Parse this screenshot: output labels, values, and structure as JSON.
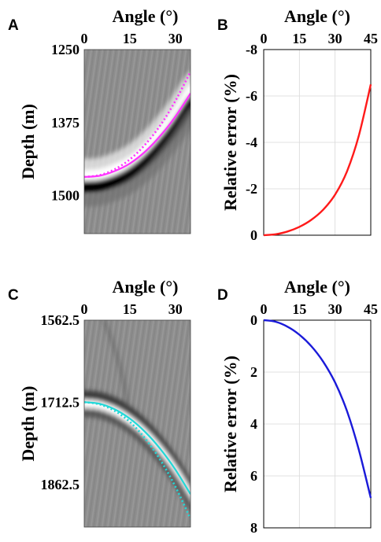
{
  "panels": {
    "A": {
      "letter": "A"
    },
    "B": {
      "letter": "B"
    },
    "C": {
      "letter": "C"
    },
    "D": {
      "letter": "D"
    }
  },
  "colors": {
    "magenta": "#ff33ff",
    "red": "#ff1a1a",
    "cyan": "#22d8d8",
    "blue": "#1a1ad9",
    "grid": "#d9d9d9"
  },
  "chart_data": [
    {
      "id": "A",
      "type": "heatmap",
      "title": "",
      "xlabel": "Angle (°)",
      "ylabel": "Depth (m)",
      "xlim": [
        0,
        35
      ],
      "ylim": [
        1250,
        1565
      ],
      "xticks": [
        "0",
        "15",
        "30"
      ],
      "xtick_values": [
        0,
        15,
        30
      ],
      "yticks": [
        "1250",
        "1375",
        "1500"
      ],
      "ytick_values": [
        1250,
        1375,
        1500
      ],
      "series": [
        {
          "style": "solid",
          "color": "magenta",
          "x": [
            0,
            5,
            10,
            15,
            20,
            25,
            30,
            35
          ],
          "y": [
            1468,
            1466,
            1458,
            1445,
            1425,
            1398,
            1365,
            1325
          ]
        },
        {
          "style": "dotted",
          "color": "magenta",
          "x": [
            0,
            5,
            10,
            15,
            20,
            25,
            30,
            35
          ],
          "y": [
            1468,
            1465,
            1455,
            1438,
            1413,
            1380,
            1338,
            1288
          ]
        }
      ]
    },
    {
      "id": "B",
      "type": "line",
      "title": "",
      "xlabel": "Angle (°)",
      "ylabel": "Relative error (%)",
      "xlim": [
        0,
        45
      ],
      "ylim": [
        0,
        -8
      ],
      "y_inverted": true,
      "grid": true,
      "xticks": [
        "0",
        "15",
        "30",
        "45"
      ],
      "xtick_values": [
        0,
        15,
        30,
        45
      ],
      "yticks": [
        "0",
        "-2",
        "-4",
        "-6",
        "-8"
      ],
      "ytick_values": [
        0,
        -2,
        -4,
        -6,
        -8
      ],
      "series": [
        {
          "color": "red",
          "x": [
            0,
            5,
            10,
            15,
            20,
            25,
            30,
            35,
            40,
            45
          ],
          "y": [
            0,
            -0.04,
            -0.16,
            -0.36,
            -0.66,
            -1.1,
            -1.75,
            -2.75,
            -4.3,
            -6.5
          ]
        }
      ]
    },
    {
      "id": "C",
      "type": "heatmap",
      "title": "",
      "xlabel": "Angle (°)",
      "ylabel": "Depth (m)",
      "xlim": [
        0,
        35
      ],
      "ylim": [
        1562.5,
        1940
      ],
      "xticks": [
        "0",
        "15",
        "30"
      ],
      "xtick_values": [
        0,
        15,
        30
      ],
      "yticks": [
        "1562.5",
        "1712.5",
        "1862.5"
      ],
      "ytick_values": [
        1562.5,
        1712.5,
        1862.5
      ],
      "series": [
        {
          "style": "solid",
          "color": "cyan",
          "x": [
            0,
            5,
            10,
            15,
            20,
            25,
            30,
            35
          ],
          "y": [
            1712,
            1715,
            1725,
            1742,
            1766,
            1797,
            1835,
            1880
          ]
        },
        {
          "style": "dotted",
          "color": "cyan",
          "x": [
            0,
            5,
            10,
            15,
            20,
            25,
            30,
            35
          ],
          "y": [
            1712,
            1716,
            1728,
            1748,
            1778,
            1817,
            1866,
            1925
          ]
        }
      ]
    },
    {
      "id": "D",
      "type": "line",
      "title": "",
      "xlabel": "Angle (°)",
      "ylabel": "Relative error (%)",
      "xlim": [
        0,
        45
      ],
      "ylim": [
        0,
        8
      ],
      "y_inverted": true,
      "grid": true,
      "xticks": [
        "0",
        "15",
        "30",
        "45"
      ],
      "xtick_values": [
        0,
        15,
        30,
        45
      ],
      "yticks": [
        "0",
        "2",
        "4",
        "6",
        "8"
      ],
      "ytick_values": [
        0,
        2,
        4,
        6,
        8
      ],
      "series": [
        {
          "color": "blue",
          "x": [
            0,
            5,
            10,
            15,
            20,
            25,
            30,
            35,
            40,
            45
          ],
          "y": [
            0,
            0.06,
            0.25,
            0.56,
            1.0,
            1.6,
            2.4,
            3.5,
            5.0,
            6.85
          ]
        }
      ]
    }
  ]
}
